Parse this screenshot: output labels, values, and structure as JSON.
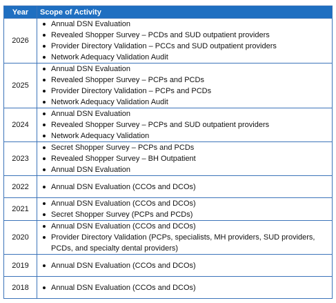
{
  "table": {
    "header": {
      "year": "Year",
      "scope": "Scope of Activity"
    },
    "rows": [
      {
        "year": "2026",
        "items": [
          "Annual DSN Evaluation",
          "Revealed Shopper Survey – PCDs and SUD outpatient providers",
          "Provider Directory Validation – PCCs and SUD outpatient providers",
          "Network Adequacy Validation Audit"
        ]
      },
      {
        "year": "2025",
        "items": [
          "Annual DSN Evaluation",
          "Revealed Shopper Survey – PCPs and PCDs",
          "Provider Directory Validation – PCPs and PCDs",
          "Network Adequacy Validation Audit"
        ]
      },
      {
        "year": "2024",
        "items": [
          "Annual DSN Evaluation",
          "Revealed Shopper Survey – PCPs and SUD outpatient providers",
          "Network Adequacy Validation"
        ]
      },
      {
        "year": "2023",
        "items": [
          "Secret Shopper Survey – PCPs and PCDs",
          "Revealed Shopper Survey – BH Outpatient",
          "Annual DSN Evaluation"
        ]
      },
      {
        "year": "2022",
        "items": [
          "Annual DSN Evaluation (CCOs and DCOs)"
        ]
      },
      {
        "year": "2021",
        "items": [
          "Annual DSN Evaluation (CCOs and DCOs)",
          "Secret Shopper Survey (PCPs and PCDs)"
        ]
      },
      {
        "year": "2020",
        "items": [
          "Annual DSN Evaluation (CCOs and DCOs)",
          "Provider Directory Validation (PCPs, specialists, MH providers, SUD providers, PCDs, and specialty dental providers)"
        ]
      },
      {
        "year": "2019",
        "items": [
          "Annual DSN Evaluation (CCOs and DCOs)"
        ]
      },
      {
        "year": "2018",
        "items": [
          "Annual DSN Evaluation (CCOs and DCOs)"
        ]
      }
    ]
  }
}
